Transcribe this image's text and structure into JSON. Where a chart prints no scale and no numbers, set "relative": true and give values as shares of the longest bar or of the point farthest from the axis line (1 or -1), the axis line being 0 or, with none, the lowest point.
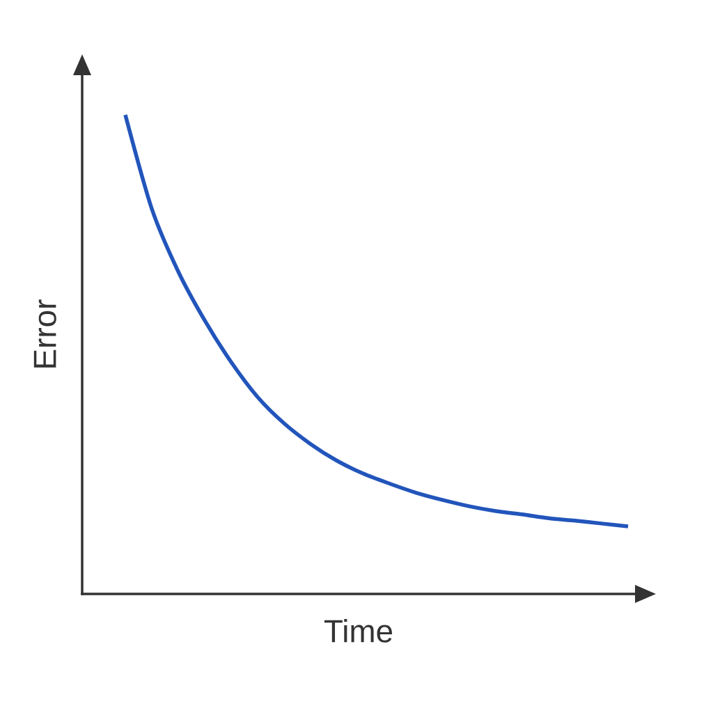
{
  "chart_data": {
    "type": "line",
    "xlabel": "Time",
    "ylabel": "Error",
    "relative": true,
    "color": "#2255bb",
    "categories": [
      null,
      null,
      null,
      null,
      null,
      null,
      null,
      null,
      null,
      null,
      null,
      null,
      null,
      null,
      null,
      null,
      null,
      null,
      null,
      null
    ],
    "values": [
      1,
      0.804,
      0.673,
      0.571,
      0.484,
      0.411,
      0.356,
      0.313,
      0.278,
      0.251,
      0.23,
      0.211,
      0.196,
      0.183,
      0.173,
      0.166,
      0.158,
      0.153,
      0.147,
      0.141
    ]
  }
}
